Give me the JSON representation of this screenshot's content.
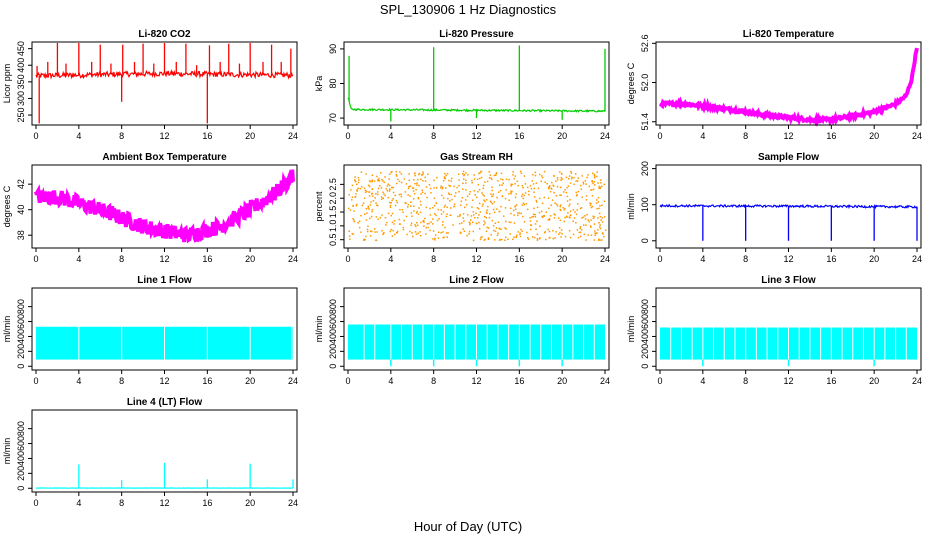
{
  "figure": {
    "title": "SPL_130906  1 Hz Diagnostics",
    "xlabel": "Hour of Day (UTC)"
  },
  "chart_data": [
    {
      "type": "line",
      "title": "Li-820 CO2",
      "ylabel": "Licor ppm",
      "color": "#ff0000",
      "xlim": [
        0,
        24
      ],
      "xticks": [
        0,
        4,
        8,
        12,
        16,
        20,
        24
      ],
      "ylim": [
        220,
        470
      ],
      "yticks": [
        250,
        300,
        350,
        400,
        450
      ],
      "baseline": [
        [
          0,
          368
        ],
        [
          6,
          372
        ],
        [
          12,
          375
        ],
        [
          18,
          372
        ],
        [
          24,
          370
        ]
      ],
      "noise": 8,
      "spikes": [
        [
          0.1,
          398
        ],
        [
          0.3,
          225
        ],
        [
          1.1,
          410
        ],
        [
          2,
          468
        ],
        [
          2.8,
          405
        ],
        [
          4,
          468
        ],
        [
          5.2,
          410
        ],
        [
          6,
          462
        ],
        [
          7,
          405
        ],
        [
          8,
          290
        ],
        [
          8.1,
          462
        ],
        [
          9.2,
          410
        ],
        [
          10,
          465
        ],
        [
          11,
          405
        ],
        [
          12,
          468
        ],
        [
          13.1,
          410
        ],
        [
          14,
          465
        ],
        [
          15,
          400
        ],
        [
          16,
          225
        ],
        [
          16.2,
          460
        ],
        [
          17.2,
          410
        ],
        [
          18,
          465
        ],
        [
          19,
          405
        ],
        [
          20,
          468
        ],
        [
          21.2,
          410
        ],
        [
          22,
          462
        ],
        [
          22.9,
          410
        ],
        [
          23.8,
          450
        ]
      ]
    },
    {
      "type": "line",
      "title": "Li-820 Pressure",
      "ylabel": "kPa",
      "color": "#00cc00",
      "xlim": [
        0,
        24
      ],
      "xticks": [
        0,
        4,
        8,
        12,
        16,
        20,
        24
      ],
      "ylim": [
        68,
        92
      ],
      "yticks": [
        70,
        80,
        90
      ],
      "baseline": [
        [
          0,
          76
        ],
        [
          0.3,
          72.5
        ],
        [
          24,
          72
        ]
      ],
      "noise": 0.25,
      "spikes": [
        [
          0.1,
          88
        ],
        [
          4,
          69
        ],
        [
          8,
          90.5
        ],
        [
          12,
          70
        ],
        [
          16,
          91
        ],
        [
          20,
          69.5
        ],
        [
          24,
          90
        ]
      ]
    },
    {
      "type": "line",
      "title": "Li-820 Temperature",
      "ylabel": "degrees C",
      "color": "#ff00ff",
      "xlim": [
        0,
        24
      ],
      "xticks": [
        0,
        4,
        8,
        12,
        16,
        20,
        24
      ],
      "ylim": [
        51.35,
        52.62
      ],
      "yticks": [
        51.4,
        52.0,
        52.6
      ],
      "ytickfmt": 1,
      "baseline": [
        [
          0,
          51.67
        ],
        [
          2,
          51.68
        ],
        [
          6,
          51.6
        ],
        [
          10,
          51.5
        ],
        [
          14,
          51.43
        ],
        [
          16,
          51.43
        ],
        [
          20,
          51.55
        ],
        [
          22,
          51.67
        ],
        [
          23,
          51.8
        ],
        [
          23.5,
          52.05
        ],
        [
          24,
          52.55
        ]
      ],
      "noise": 0.025,
      "spikes": []
    },
    {
      "type": "line",
      "title": "Ambient Box Temperature",
      "ylabel": "degrees C",
      "color": "#ff00ff",
      "xlim": [
        0,
        24
      ],
      "xticks": [
        0,
        4,
        8,
        12,
        16,
        20,
        24
      ],
      "ylim": [
        37,
        43.5
      ],
      "yticks": [
        38,
        40,
        42
      ],
      "baseline": [
        [
          0,
          41
        ],
        [
          2,
          41
        ],
        [
          6,
          40
        ],
        [
          10,
          38.7
        ],
        [
          14,
          38
        ],
        [
          17,
          38.6
        ],
        [
          20,
          40
        ],
        [
          22.5,
          41.4
        ],
        [
          24,
          42.6
        ]
      ],
      "noise": 0.6,
      "spikes": []
    },
    {
      "type": "scatter",
      "title": "Gas Stream RH",
      "ylabel": "percent",
      "color": "#ff9900",
      "xlim": [
        0,
        24
      ],
      "xticks": [
        0,
        4,
        8,
        12,
        16,
        20,
        24
      ],
      "ylim": [
        0.2,
        3.2
      ],
      "yticks": [
        0.5,
        1.0,
        1.5,
        2.0,
        2.5
      ],
      "ytickfmt": 1,
      "band": [
        0.5,
        3.0
      ]
    },
    {
      "type": "line",
      "title": "Sample Flow",
      "ylabel": "ml/min",
      "color": "#0000ff",
      "xlim": [
        0,
        24
      ],
      "xticks": [
        0,
        4,
        8,
        12,
        16,
        20,
        24
      ],
      "ylim": [
        -20,
        210
      ],
      "yticks": [
        0,
        100,
        200
      ],
      "baseline": [
        [
          0,
          97
        ],
        [
          12,
          96
        ],
        [
          24,
          94
        ]
      ],
      "noise": 3,
      "spikes": [
        [
          4,
          0
        ],
        [
          8,
          0
        ],
        [
          12,
          0
        ],
        [
          16,
          0
        ],
        [
          20,
          0
        ],
        [
          24,
          0
        ]
      ]
    },
    {
      "type": "band",
      "title": "Line 1 Flow",
      "ylabel": "ml/min",
      "color": "#00ffff",
      "xlim": [
        0,
        24
      ],
      "xticks": [
        0,
        4,
        8,
        12,
        16,
        20,
        24
      ],
      "ylim": [
        -50,
        1050
      ],
      "yticks": [
        0,
        200,
        400,
        600,
        800
      ],
      "band": [
        90,
        530
      ],
      "gaps": [
        4,
        8,
        12,
        16,
        20,
        23.9
      ],
      "dips": []
    },
    {
      "type": "band",
      "title": "Line 2 Flow",
      "ylabel": "ml/min",
      "color": "#00ffff",
      "xlim": [
        0,
        24
      ],
      "xticks": [
        0,
        4,
        8,
        12,
        16,
        20,
        24
      ],
      "ylim": [
        -50,
        1050
      ],
      "yticks": [
        0,
        200,
        400,
        600,
        800
      ],
      "band": [
        90,
        560
      ],
      "gaps": [
        1.5,
        2.5,
        4,
        5,
        6,
        7,
        8,
        9,
        10,
        11,
        12,
        13,
        14,
        15,
        16,
        17,
        18,
        19,
        20,
        21,
        22,
        23
      ],
      "dips": [
        4,
        8,
        12,
        16,
        20
      ]
    },
    {
      "type": "band",
      "title": "Line 3 Flow",
      "ylabel": "ml/min",
      "color": "#00ffff",
      "xlim": [
        0,
        24
      ],
      "xticks": [
        0,
        4,
        8,
        12,
        16,
        20,
        24
      ],
      "ylim": [
        -50,
        1050
      ],
      "yticks": [
        0,
        200,
        400,
        600,
        800
      ],
      "band": [
        90,
        520
      ],
      "gaps": [
        1,
        2,
        3,
        4,
        5,
        6,
        7,
        8,
        9,
        10,
        11,
        12,
        13,
        14,
        15,
        16,
        17,
        18,
        19,
        20,
        21,
        22,
        23
      ],
      "dips": [
        4,
        12,
        20
      ]
    },
    {
      "type": "line",
      "title": "Line 4 (LT) Flow",
      "ylabel": "ml/min",
      "color": "#00ffff",
      "xlim": [
        0,
        24
      ],
      "xticks": [
        0,
        4,
        8,
        12,
        16,
        20,
        24
      ],
      "ylim": [
        -50,
        1050
      ],
      "yticks": [
        0,
        200,
        400,
        600,
        800
      ],
      "baseline": [
        [
          0,
          3
        ],
        [
          24,
          3
        ]
      ],
      "noise": 2,
      "spikes": [
        [
          4,
          320
        ],
        [
          8,
          110
        ],
        [
          12,
          340
        ],
        [
          16,
          120
        ],
        [
          20,
          330
        ],
        [
          24,
          120
        ]
      ]
    }
  ]
}
